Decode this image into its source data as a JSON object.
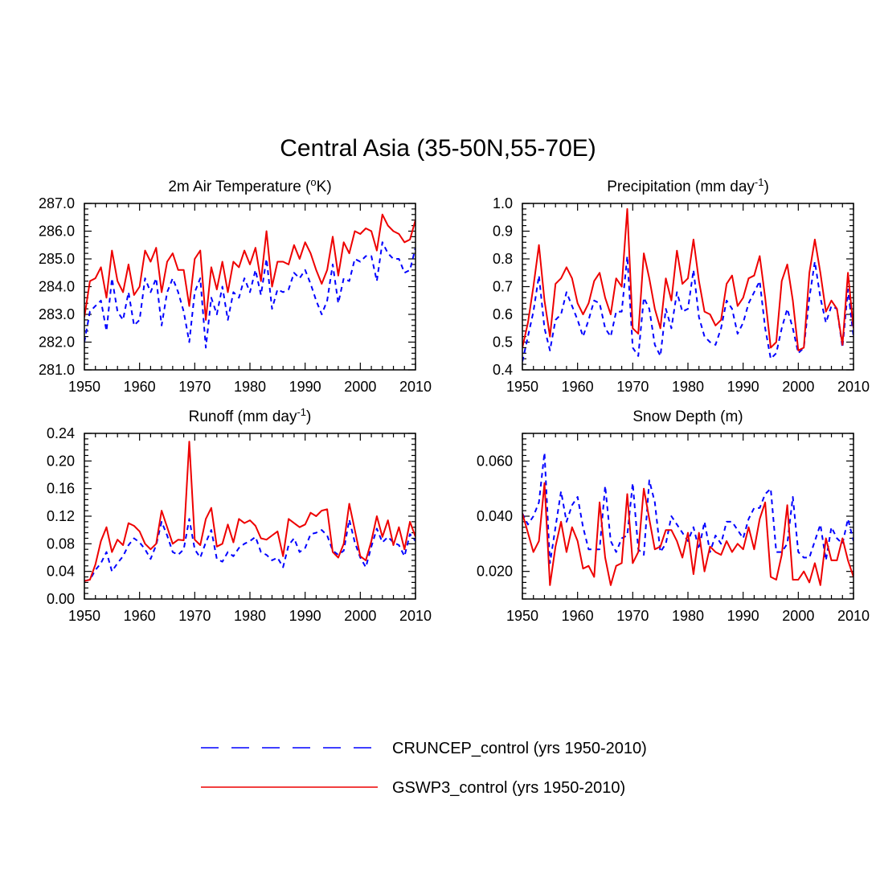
{
  "title": "Central Asia (35-50N,55-70E)",
  "colors": {
    "cruncep": "#0000ff",
    "gswp3": "#ee0000",
    "axis": "#000000"
  },
  "legend": {
    "entries": [
      {
        "name": "CRUNCEP_control (yrs 1950-2010)",
        "style": "dashed",
        "color": "#0000ff"
      },
      {
        "name": "GSWP3_control (yrs 1950-2010)",
        "style": "solid",
        "color": "#ee0000"
      }
    ]
  },
  "chart_data": [
    {
      "type": "line",
      "title": "2m Air Temperature (",
      "title_sup": "o",
      "title_post": "K)",
      "xlabel": "",
      "ylabel": "",
      "xlim": [
        1950,
        2010
      ],
      "ylim": [
        281.0,
        287.0
      ],
      "yticks": [
        281.0,
        282.0,
        283.0,
        284.0,
        285.0,
        286.0,
        287.0
      ],
      "ytick_labels": [
        "281.0",
        "282.0",
        "283.0",
        "284.0",
        "285.0",
        "286.0",
        "287.0"
      ],
      "yminor": 0.2,
      "xticks": [
        1950,
        1960,
        1970,
        1980,
        1990,
        2000,
        2010
      ],
      "xtick_labels": [
        "1950",
        "1960",
        "1970",
        "1980",
        "1990",
        "2000",
        "2010"
      ],
      "x_start": 1950,
      "series": [
        {
          "name": "CRUNCEP_control",
          "values": [
            282.0,
            283.1,
            283.3,
            283.5,
            282.4,
            284.3,
            283.1,
            282.8,
            283.8,
            282.6,
            282.8,
            284.3,
            283.8,
            284.3,
            282.6,
            283.8,
            284.3,
            283.8,
            283.1,
            282.0,
            283.8,
            284.3,
            281.8,
            283.6,
            283.0,
            284.0,
            282.8,
            283.8,
            283.6,
            284.3,
            283.8,
            284.6,
            283.7,
            285.0,
            283.2,
            283.9,
            283.8,
            283.9,
            284.5,
            284.3,
            284.6,
            284.1,
            283.5,
            283.0,
            283.5,
            284.8,
            283.4,
            284.3,
            284.2,
            285.0,
            284.9,
            285.1,
            285.1,
            284.2,
            285.6,
            285.2,
            285.0,
            285.0,
            284.5,
            284.6,
            285.4
          ]
        },
        {
          "name": "GSWP3_control",
          "values": [
            282.9,
            284.2,
            284.3,
            284.7,
            283.6,
            285.3,
            284.2,
            283.8,
            284.8,
            283.7,
            284.0,
            285.3,
            284.9,
            285.4,
            283.8,
            284.9,
            285.2,
            284.6,
            284.6,
            283.3,
            285.0,
            285.3,
            282.8,
            284.7,
            283.9,
            284.9,
            283.8,
            284.9,
            284.7,
            285.3,
            284.8,
            285.4,
            284.2,
            286.0,
            284.0,
            284.9,
            284.9,
            284.8,
            285.5,
            285.0,
            285.6,
            285.2,
            284.6,
            284.1,
            284.6,
            285.8,
            284.4,
            285.6,
            285.2,
            286.0,
            285.9,
            286.1,
            286.0,
            285.3,
            286.6,
            286.2,
            286.0,
            285.9,
            285.6,
            285.7,
            286.4
          ]
        }
      ]
    },
    {
      "type": "line",
      "title": "Precipitation (mm day",
      "title_sup": "-1",
      "title_post": ")",
      "xlabel": "",
      "ylabel": "",
      "xlim": [
        1950,
        2010
      ],
      "ylim": [
        0.4,
        1.0
      ],
      "yticks": [
        0.4,
        0.5,
        0.6,
        0.7,
        0.8,
        0.9,
        1.0
      ],
      "ytick_labels": [
        "0.4",
        "0.5",
        "0.6",
        "0.7",
        "0.8",
        "0.9",
        "1.0"
      ],
      "yminor": 0.02,
      "xticks": [
        1950,
        1960,
        1970,
        1980,
        1990,
        2000,
        2010
      ],
      "xtick_labels": [
        "1950",
        "1960",
        "1970",
        "1980",
        "1990",
        "2000",
        "2010"
      ],
      "x_start": 1950,
      "series": [
        {
          "name": "CRUNCEP_control",
          "values": [
            0.43,
            0.52,
            0.61,
            0.74,
            0.55,
            0.47,
            0.58,
            0.6,
            0.68,
            0.63,
            0.58,
            0.52,
            0.58,
            0.65,
            0.64,
            0.55,
            0.52,
            0.61,
            0.61,
            0.81,
            0.48,
            0.45,
            0.66,
            0.62,
            0.49,
            0.45,
            0.62,
            0.55,
            0.68,
            0.61,
            0.62,
            0.76,
            0.59,
            0.52,
            0.5,
            0.49,
            0.55,
            0.65,
            0.62,
            0.53,
            0.57,
            0.64,
            0.68,
            0.72,
            0.55,
            0.44,
            0.46,
            0.55,
            0.62,
            0.55,
            0.46,
            0.48,
            0.66,
            0.79,
            0.66,
            0.57,
            0.63,
            0.62,
            0.48,
            0.69,
            0.52
          ]
        },
        {
          "name": "GSWP3_control",
          "values": [
            0.48,
            0.57,
            0.7,
            0.85,
            0.65,
            0.52,
            0.71,
            0.73,
            0.77,
            0.73,
            0.64,
            0.6,
            0.64,
            0.72,
            0.75,
            0.66,
            0.6,
            0.73,
            0.7,
            0.98,
            0.55,
            0.53,
            0.82,
            0.73,
            0.62,
            0.55,
            0.73,
            0.65,
            0.83,
            0.71,
            0.73,
            0.87,
            0.72,
            0.61,
            0.6,
            0.56,
            0.58,
            0.71,
            0.74,
            0.63,
            0.66,
            0.73,
            0.74,
            0.81,
            0.66,
            0.48,
            0.5,
            0.72,
            0.78,
            0.65,
            0.47,
            0.48,
            0.75,
            0.87,
            0.75,
            0.61,
            0.65,
            0.62,
            0.49,
            0.75,
            0.55
          ]
        }
      ]
    },
    {
      "type": "line",
      "title": "Runoff (mm day",
      "title_sup": "-1",
      "title_post": ")",
      "xlabel": "",
      "ylabel": "",
      "xlim": [
        1950,
        2010
      ],
      "ylim": [
        0.0,
        0.24
      ],
      "yticks": [
        0.0,
        0.04,
        0.08,
        0.12,
        0.16,
        0.2,
        0.24
      ],
      "ytick_labels": [
        "0.00",
        "0.04",
        "0.08",
        "0.12",
        "0.16",
        "0.20",
        "0.24"
      ],
      "yminor": 0.008,
      "xticks": [
        1950,
        1960,
        1970,
        1980,
        1990,
        2000,
        2010
      ],
      "xtick_labels": [
        "1950",
        "1960",
        "1970",
        "1980",
        "1990",
        "2000",
        "2010"
      ],
      "x_start": 1950,
      "series": [
        {
          "name": "CRUNCEP_control",
          "values": [
            0.026,
            0.028,
            0.042,
            0.052,
            0.068,
            0.04,
            0.052,
            0.062,
            0.078,
            0.088,
            0.082,
            0.072,
            0.058,
            0.078,
            0.112,
            0.092,
            0.068,
            0.064,
            0.072,
            0.116,
            0.072,
            0.06,
            0.082,
            0.1,
            0.058,
            0.054,
            0.068,
            0.062,
            0.074,
            0.08,
            0.084,
            0.09,
            0.068,
            0.064,
            0.056,
            0.06,
            0.046,
            0.078,
            0.088,
            0.068,
            0.074,
            0.094,
            0.096,
            0.1,
            0.092,
            0.07,
            0.064,
            0.07,
            0.115,
            0.082,
            0.06,
            0.046,
            0.076,
            0.102,
            0.082,
            0.09,
            0.082,
            0.078,
            0.062,
            0.094,
            0.084
          ]
        },
        {
          "name": "GSWP3_control",
          "values": [
            0.026,
            0.028,
            0.05,
            0.084,
            0.104,
            0.068,
            0.086,
            0.078,
            0.11,
            0.106,
            0.098,
            0.08,
            0.072,
            0.08,
            0.128,
            0.104,
            0.08,
            0.086,
            0.085,
            0.228,
            0.086,
            0.078,
            0.116,
            0.132,
            0.076,
            0.08,
            0.108,
            0.082,
            0.116,
            0.11,
            0.114,
            0.106,
            0.088,
            0.086,
            0.092,
            0.098,
            0.062,
            0.116,
            0.11,
            0.104,
            0.108,
            0.125,
            0.12,
            0.128,
            0.13,
            0.068,
            0.06,
            0.08,
            0.138,
            0.1,
            0.062,
            0.056,
            0.084,
            0.12,
            0.09,
            0.114,
            0.078,
            0.104,
            0.072,
            0.112,
            0.09
          ]
        }
      ]
    },
    {
      "type": "line",
      "title": "Snow Depth (m)",
      "title_sup": "",
      "title_post": "",
      "xlabel": "",
      "ylabel": "",
      "xlim": [
        1950,
        2010
      ],
      "ylim": [
        0.01,
        0.07
      ],
      "yticks": [
        0.02,
        0.04,
        0.06
      ],
      "ytick_labels": [
        "0.020",
        "0.040",
        "0.060"
      ],
      "yminor": 0.002,
      "xticks": [
        1950,
        1960,
        1970,
        1980,
        1990,
        2000,
        2010
      ],
      "xtick_labels": [
        "1950",
        "1960",
        "1970",
        "1980",
        "1990",
        "2000",
        "2010"
      ],
      "x_start": 1950,
      "series": [
        {
          "name": "CRUNCEP_control",
          "values": [
            0.041,
            0.037,
            0.04,
            0.045,
            0.063,
            0.023,
            0.036,
            0.049,
            0.038,
            0.044,
            0.047,
            0.036,
            0.028,
            0.028,
            0.028,
            0.051,
            0.031,
            0.027,
            0.032,
            0.033,
            0.052,
            0.028,
            0.026,
            0.053,
            0.045,
            0.027,
            0.03,
            0.04,
            0.037,
            0.034,
            0.031,
            0.036,
            0.028,
            0.038,
            0.027,
            0.033,
            0.03,
            0.038,
            0.038,
            0.035,
            0.032,
            0.039,
            0.043,
            0.043,
            0.048,
            0.05,
            0.027,
            0.027,
            0.03,
            0.047,
            0.027,
            0.025,
            0.025,
            0.031,
            0.037,
            0.024,
            0.036,
            0.032,
            0.03,
            0.039,
            0.031
          ]
        },
        {
          "name": "GSWP3_control",
          "values": [
            0.041,
            0.034,
            0.027,
            0.031,
            0.052,
            0.015,
            0.029,
            0.038,
            0.027,
            0.036,
            0.031,
            0.021,
            0.022,
            0.018,
            0.045,
            0.025,
            0.015,
            0.022,
            0.023,
            0.048,
            0.023,
            0.027,
            0.05,
            0.039,
            0.028,
            0.029,
            0.035,
            0.035,
            0.031,
            0.025,
            0.034,
            0.019,
            0.034,
            0.02,
            0.029,
            0.027,
            0.026,
            0.031,
            0.027,
            0.03,
            0.028,
            0.036,
            0.028,
            0.039,
            0.045,
            0.018,
            0.017,
            0.026,
            0.044,
            0.017,
            0.017,
            0.02,
            0.016,
            0.023,
            0.015,
            0.032,
            0.024,
            0.024,
            0.032,
            0.024,
            0.018
          ]
        }
      ]
    }
  ]
}
